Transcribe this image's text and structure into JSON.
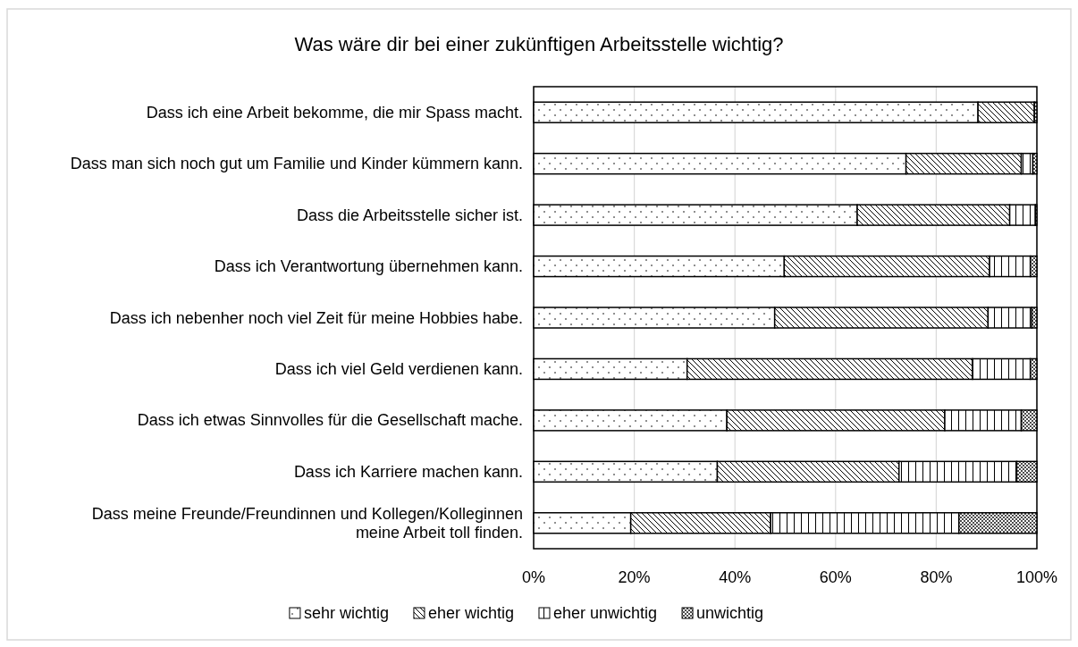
{
  "chart_data": {
    "type": "bar",
    "orientation": "horizontal",
    "stacked": true,
    "title": "Was wäre dir bei einer zukünftigen Arbeitsstelle wichtig?",
    "categories": [
      "Dass ich eine Arbeit bekomme, die mir Spass macht.",
      "Dass man sich noch gut um Familie und Kinder kümmern kann.",
      "Dass die Arbeitsstelle sicher ist.",
      "Dass ich Verantwortung übernehmen kann.",
      "Dass ich nebenher noch viel Zeit für meine Hobbies habe.",
      "Dass ich viel Geld verdienen kann.",
      "Dass ich etwas Sinnvolles für die Gesellschaft mache.",
      "Dass ich Karriere machen kann.",
      "Dass meine Freunde/Freundinnen und Kollegen/Kolleginnen meine Arbeit toll finden."
    ],
    "series": [
      {
        "name": "sehr wichtig",
        "color": "#000000",
        "values": [
          88.3,
          74,
          64.3,
          49.8,
          47.9,
          30.5,
          38.4,
          36.5,
          19.3
        ]
      },
      {
        "name": "eher wichtig",
        "color": "#000000",
        "values": [
          11.2,
          22.9,
          30.3,
          40.8,
          42.4,
          56.7,
          43.3,
          36.1,
          27.8
        ]
      },
      {
        "name": "eher unwichtig",
        "color": "#000000",
        "values": [
          0,
          2.3,
          5.1,
          8.1,
          8.7,
          11.5,
          15.2,
          23.4,
          37.4
        ]
      },
      {
        "name": "unwichtig",
        "color": "#000000",
        "values": [
          0.5,
          0.8,
          0.3,
          1.3,
          1,
          1.3,
          3.1,
          4,
          15.5
        ]
      }
    ],
    "xlim": [
      0,
      100
    ],
    "xticks": [
      {
        "value": 0,
        "label": "0%"
      },
      {
        "value": 20,
        "label": "20%"
      },
      {
        "value": 40,
        "label": "40%"
      },
      {
        "value": 60,
        "label": "60%"
      },
      {
        "value": 80,
        "label": "80%"
      },
      {
        "value": 100,
        "label": "100%"
      }
    ],
    "grid": "x",
    "legend": "bottom"
  }
}
